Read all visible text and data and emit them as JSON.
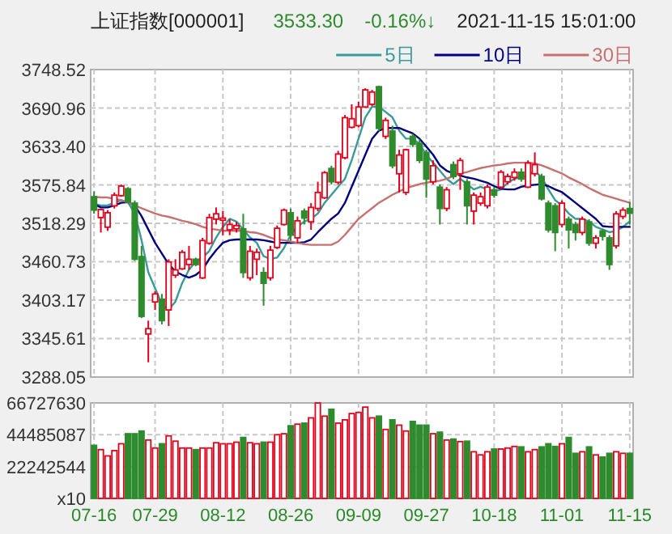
{
  "chart_data": [
    {
      "type": "candlestick",
      "title": "上证指数[000001]",
      "annotations": [
        "3533.30",
        "-0.16%↓",
        "2021-11-15 15:01:00"
      ],
      "ohlc": [
        [
          3558.1,
          3566.1,
          3532.5,
          3538.1
        ],
        [
          3526.9,
          3540.5,
          3504.5,
          3538.9
        ],
        [
          3512.5,
          3538.1,
          3506.9,
          3534.1
        ],
        [
          3544.5,
          3564.5,
          3540.5,
          3560.5
        ],
        [
          3559.7,
          3576.5,
          3558.1,
          3574.1
        ],
        [
          3570.1,
          3572.5,
          3548.5,
          3550.1
        ],
        [
          3548.5,
          3552.5,
          3462.1,
          3464.5
        ],
        [
          3468.5,
          3484.5,
          3376.5,
          3378.9
        ],
        [
          3352.5,
          3372.5,
          3310.1,
          3360.5
        ],
        [
          3400.5,
          3416.5,
          3388.5,
          3412.5
        ],
        [
          3404.5,
          3412.5,
          3366.9,
          3372.5
        ],
        [
          3388.5,
          3464.5,
          3364.5,
          3460.5
        ],
        [
          3440.5,
          3464.5,
          3436.5,
          3448.5
        ],
        [
          3450.1,
          3478.1,
          3448.5,
          3474.9
        ],
        [
          3456.5,
          3484.5,
          3448.5,
          3464.5
        ],
        [
          3464.5,
          3466.9,
          3454.1,
          3456.5
        ],
        [
          3436.5,
          3496.5,
          3434.9,
          3492.5
        ],
        [
          3488.5,
          3532.5,
          3486.1,
          3526.9
        ],
        [
          3524.5,
          3542.1,
          3516.5,
          3532.5
        ],
        [
          3522.9,
          3536.5,
          3500.5,
          3526.1
        ],
        [
          3508.5,
          3524.5,
          3500.5,
          3516.5
        ],
        [
          3510.1,
          3520.5,
          3504.5,
          3514.9
        ],
        [
          3510.1,
          3532.5,
          3436.5,
          3444.5
        ],
        [
          3436.5,
          3484.5,
          3432.5,
          3476.5
        ],
        [
          3464.5,
          3480.5,
          3440.5,
          3474.9
        ],
        [
          3444.5,
          3452.5,
          3394.9,
          3428.5
        ],
        [
          3436.5,
          3484.5,
          3432.5,
          3478.1
        ],
        [
          3482.1,
          3514.9,
          3479.7,
          3510.9
        ],
        [
          3516.5,
          3540.5,
          3514.9,
          3538.1
        ],
        [
          3534.1,
          3540.5,
          3492.5,
          3500.5
        ],
        [
          3496.5,
          3528.5,
          3488.5,
          3522.1
        ],
        [
          3536.5,
          3540.5,
          3516.5,
          3526.1
        ],
        [
          3520.5,
          3548.5,
          3508.5,
          3542.1
        ],
        [
          3540.5,
          3580.5,
          3536.5,
          3564.5
        ],
        [
          3556.5,
          3596.5,
          3554.9,
          3594.1
        ],
        [
          3600.5,
          3604.5,
          3576.5,
          3580.5
        ],
        [
          3579.7,
          3626.9,
          3576.5,
          3622.1
        ],
        [
          3616.5,
          3680.5,
          3614.1,
          3676.5
        ],
        [
          3662.1,
          3696.5,
          3660.5,
          3674.9
        ],
        [
          3664.5,
          3700.5,
          3662.1,
          3692.5
        ],
        [
          3692.5,
          3720.5,
          3690.9,
          3718.1
        ],
        [
          3696.5,
          3718.1,
          3694.1,
          3714.9
        ],
        [
          3722.9,
          3724.5,
          3656.5,
          3660.5
        ],
        [
          3648.5,
          3676.5,
          3644.5,
          3672.5
        ],
        [
          3656.5,
          3664.5,
          3600.5,
          3604.5
        ],
        [
          3592.5,
          3628.5,
          3564.5,
          3620.5
        ],
        [
          3564.5,
          3630.1,
          3560.5,
          3628.5
        ],
        [
          3648.5,
          3652.5,
          3632.5,
          3636.5
        ],
        [
          3638.1,
          3644.5,
          3608.5,
          3612.5
        ],
        [
          3624.5,
          3628.5,
          3556.5,
          3584.5
        ],
        [
          3580.5,
          3612.5,
          3576.5,
          3604.5
        ],
        [
          3572.5,
          3576.5,
          3516.5,
          3540.5
        ],
        [
          3540.5,
          3572.5,
          3536.5,
          3568.5
        ],
        [
          3606.1,
          3610.9,
          3584.5,
          3588.5
        ],
        [
          3592.5,
          3616.5,
          3568.5,
          3612.5
        ],
        [
          3580.5,
          3584.5,
          3516.5,
          3544.5
        ],
        [
          3536.5,
          3564.5,
          3516.5,
          3560.5
        ],
        [
          3548.5,
          3564.5,
          3544.5,
          3558.1
        ],
        [
          3544.5,
          3576.5,
          3540.5,
          3572.5
        ],
        [
          3568.5,
          3572.5,
          3556.5,
          3560.5
        ],
        [
          3572.5,
          3598.1,
          3568.5,
          3594.9
        ],
        [
          3580.5,
          3592.5,
          3576.5,
          3588.5
        ],
        [
          3586.9,
          3600.5,
          3582.1,
          3594.9
        ],
        [
          3594.9,
          3600.5,
          3580.5,
          3584.5
        ],
        [
          3572.5,
          3612.5,
          3570.9,
          3608.5
        ],
        [
          3592.5,
          3624.5,
          3588.5,
          3606.1
        ],
        [
          3588.5,
          3592.5,
          3552.5,
          3554.9
        ],
        [
          3548.5,
          3552.5,
          3504.5,
          3508.5
        ],
        [
          3544.5,
          3548.5,
          3476.5,
          3504.5
        ],
        [
          3516.5,
          3552.5,
          3512.5,
          3548.5
        ],
        [
          3524.5,
          3528.5,
          3480.5,
          3508.5
        ],
        [
          3516.5,
          3520.5,
          3492.5,
          3504.5
        ],
        [
          3504.5,
          3528.5,
          3500.5,
          3524.5
        ],
        [
          3520.5,
          3524.5,
          3484.5,
          3488.5
        ],
        [
          3488.5,
          3500.5,
          3480.5,
          3496.5
        ],
        [
          3506.9,
          3510.1,
          3492.5,
          3498.9
        ],
        [
          3496.5,
          3500.5,
          3448.5,
          3456.5
        ],
        [
          3484.5,
          3536.5,
          3480.5,
          3532.5
        ],
        [
          3528.5,
          3542.1,
          3524.5,
          3538.1
        ],
        [
          3540.5,
          3550.1,
          3516.5,
          3533.3
        ]
      ],
      "series": [
        {
          "type": "line",
          "name": "5日",
          "color": "#3a9a9a",
          "values": [
            3547,
            3545,
            3545,
            3549,
            3553,
            3550,
            3533,
            3493,
            3445,
            3421,
            3397,
            3389,
            3401,
            3429,
            3449,
            3461,
            3467,
            3477,
            3497,
            3513,
            3525,
            3521,
            3509,
            3497,
            3489,
            3469,
            3465,
            3467,
            3481,
            3501,
            3513,
            3521,
            3525,
            3533,
            3549,
            3561,
            3573,
            3585,
            3613,
            3645,
            3677,
            3693,
            3693,
            3685,
            3677,
            3657,
            3645,
            3645,
            3637,
            3621,
            3609,
            3597,
            3585,
            3577,
            3585,
            3577,
            3569,
            3573,
            3569,
            3566,
            3569,
            3579,
            3585,
            3587,
            3590,
            3597,
            3587,
            3569,
            3553,
            3545,
            3533,
            3525,
            3525,
            3521,
            3513,
            3509,
            3505,
            3507,
            3513,
            3521
          ]
        },
        {
          "type": "line",
          "name": "10日",
          "color": "#000080",
          "values": [
            3547,
            3542,
            3542,
            3545,
            3549,
            3550,
            3545,
            3529,
            3509,
            3489,
            3473,
            3457,
            3446,
            3441,
            3437,
            3441,
            3449,
            3465,
            3478,
            3489,
            3493,
            3494,
            3494,
            3494,
            3494,
            3493,
            3491,
            3489,
            3489,
            3489,
            3489,
            3490,
            3494,
            3505,
            3515,
            3525,
            3533,
            3549,
            3573,
            3597,
            3621,
            3645,
            3657,
            3661,
            3661,
            3661,
            3657,
            3653,
            3645,
            3633,
            3621,
            3605,
            3597,
            3593,
            3590,
            3587,
            3585,
            3582,
            3579,
            3574,
            3570,
            3569,
            3569,
            3573,
            3575,
            3576,
            3577,
            3574,
            3569,
            3565,
            3557,
            3549,
            3541,
            3533,
            3525,
            3514,
            3513,
            3513,
            3513,
            3513
          ]
        },
        {
          "type": "line",
          "name": "30日",
          "color": "#c87070",
          "values": [
            3558,
            3557,
            3557,
            3555,
            3553,
            3550,
            3545,
            3541,
            3537,
            3533,
            3530,
            3528,
            3525,
            3522,
            3520,
            3517,
            3513,
            3510,
            3509,
            3507,
            3507,
            3507,
            3507,
            3505,
            3504,
            3501,
            3497,
            3494,
            3493,
            3491,
            3489,
            3487,
            3486,
            3486,
            3486,
            3486,
            3491,
            3501,
            3513,
            3525,
            3533,
            3541,
            3549,
            3555,
            3561,
            3566,
            3571,
            3574,
            3577,
            3579,
            3581,
            3582,
            3585,
            3589,
            3593,
            3595,
            3598,
            3601,
            3603,
            3605,
            3606,
            3608,
            3609,
            3609,
            3609,
            3608,
            3605,
            3601,
            3597,
            3593,
            3587,
            3582,
            3577,
            3571,
            3566,
            3561,
            3558,
            3555,
            3552,
            3549
          ]
        }
      ],
      "ylim": [
        3288.05,
        3748.52
      ],
      "yticks": [
        {
          "value": 3288.05,
          "label": "3288.05"
        },
        {
          "value": 3345.61,
          "label": "3345.61"
        },
        {
          "value": 3403.17,
          "label": "3403.17"
        },
        {
          "value": 3460.73,
          "label": "3460.73"
        },
        {
          "value": 3518.29,
          "label": "3518.29"
        },
        {
          "value": 3575.84,
          "label": "3575.84"
        },
        {
          "value": 3633.4,
          "label": "3633.40"
        },
        {
          "value": 3690.96,
          "label": "3690.96"
        },
        {
          "value": 3748.52,
          "label": "3748.52"
        }
      ],
      "grid": true,
      "legend": "top right",
      "tick_labels": "y"
    },
    {
      "type": "bar",
      "categories": [
        "07-16",
        null,
        null,
        null,
        null,
        null,
        null,
        null,
        null,
        "07-29",
        null,
        null,
        null,
        null,
        null,
        null,
        null,
        null,
        null,
        "08-12",
        null,
        null,
        null,
        null,
        null,
        null,
        null,
        null,
        null,
        "08-26",
        null,
        null,
        null,
        null,
        null,
        null,
        null,
        null,
        null,
        "09-09",
        null,
        null,
        null,
        null,
        null,
        null,
        null,
        null,
        null,
        "09-27",
        null,
        null,
        null,
        null,
        null,
        null,
        null,
        null,
        null,
        "10-18",
        null,
        null,
        null,
        null,
        null,
        null,
        null,
        null,
        null,
        "11-01",
        null,
        null,
        null,
        null,
        null,
        null,
        null,
        null,
        null,
        "11-15"
      ],
      "values": [
        37100000,
        34100000,
        29700000,
        33400000,
        38200000,
        45200000,
        45200000,
        47100000,
        40800000,
        35200000,
        38200000,
        43700000,
        40000000,
        35200000,
        35200000,
        34100000,
        35200000,
        35200000,
        38900000,
        38200000,
        38200000,
        39300000,
        42600000,
        38900000,
        38200000,
        39300000,
        39300000,
        44500000,
        45200000,
        50800000,
        51900000,
        52600000,
        56300000,
        66700000,
        57500000,
        62300000,
        52600000,
        54900000,
        59300000,
        60100000,
        63800000,
        56300000,
        57500000,
        48200000,
        54900000,
        51200000,
        47100000,
        53800000,
        51200000,
        51200000,
        45200000,
        46300000,
        40800000,
        41500000,
        39700000,
        40000000,
        32600000,
        30400000,
        32600000,
        34500000,
        34500000,
        35200000,
        36300000,
        36000000,
        32600000,
        34100000,
        36000000,
        38200000,
        36300000,
        38200000,
        42600000,
        31500000,
        32600000,
        36000000,
        30400000,
        28900000,
        31500000,
        32600000,
        31500000,
        31500000
      ],
      "colors": [
        "#2e8b2e",
        "#e0001c",
        "#e0001c",
        "#e0001c",
        "#e0001c",
        "#2e8b2e",
        "#2e8b2e",
        "#2e8b2e",
        "#e0001c",
        "#e0001c",
        "#2e8b2e",
        "#e0001c",
        "#e0001c",
        "#e0001c",
        "#e0001c",
        "#2e8b2e",
        "#e0001c",
        "#e0001c",
        "#e0001c",
        "#e0001c",
        "#e0001c",
        "#e0001c",
        "#2e8b2e",
        "#e0001c",
        "#e0001c",
        "#2e8b2e",
        "#e0001c",
        "#e0001c",
        "#e0001c",
        "#2e8b2e",
        "#e0001c",
        "#2e8b2e",
        "#e0001c",
        "#e0001c",
        "#e0001c",
        "#2e8b2e",
        "#e0001c",
        "#e0001c",
        "#e0001c",
        "#e0001c",
        "#e0001c",
        "#e0001c",
        "#2e8b2e",
        "#e0001c",
        "#2e8b2e",
        "#e0001c",
        "#e0001c",
        "#2e8b2e",
        "#2e8b2e",
        "#2e8b2e",
        "#e0001c",
        "#2e8b2e",
        "#e0001c",
        "#2e8b2e",
        "#e0001c",
        "#2e8b2e",
        "#e0001c",
        "#e0001c",
        "#e0001c",
        "#2e8b2e",
        "#e0001c",
        "#e0001c",
        "#e0001c",
        "#2e8b2e",
        "#e0001c",
        "#e0001c",
        "#2e8b2e",
        "#2e8b2e",
        "#2e8b2e",
        "#e0001c",
        "#2e8b2e",
        "#2e8b2e",
        "#e0001c",
        "#2e8b2e",
        "#e0001c",
        "#2e8b2e",
        "#2e8b2e",
        "#e0001c",
        "#e0001c",
        "#2e8b2e"
      ],
      "ylim": [
        0,
        66727630
      ],
      "yticks": [
        {
          "value": 0,
          "label": "x10"
        },
        22242544,
        44485087,
        66727630
      ],
      "grid": true
    }
  ]
}
